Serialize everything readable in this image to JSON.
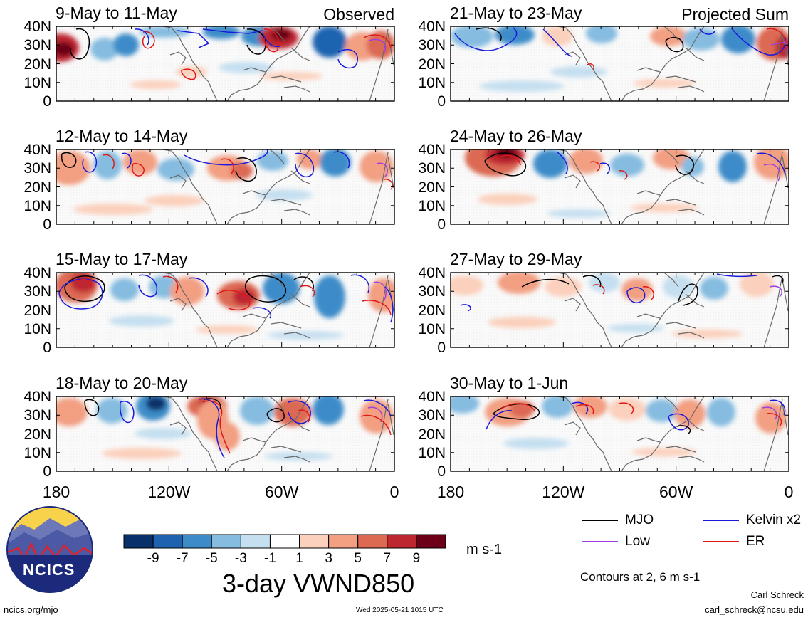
{
  "panels": [
    {
      "title": "9-May to 11-May",
      "tag": "Observed"
    },
    {
      "title": "21-May to 23-May",
      "tag": "Projected Sum"
    },
    {
      "title": "12-May to 14-May",
      "tag": ""
    },
    {
      "title": "24-May to 26-May",
      "tag": ""
    },
    {
      "title": "15-May to 17-May",
      "tag": ""
    },
    {
      "title": "27-May to 29-May",
      "tag": ""
    },
    {
      "title": "18-May to 20-May",
      "tag": ""
    },
    {
      "title": "30-May to 1-Jun",
      "tag": ""
    }
  ],
  "lat_labels": [
    "40N",
    "30N",
    "20N",
    "10N",
    "0"
  ],
  "lon_labels": [
    "180",
    "120W",
    "60W",
    "0"
  ],
  "legend": {
    "items": [
      {
        "label": "MJO",
        "color": "#000000"
      },
      {
        "label": "Kelvin x2",
        "color": "#1a1adb"
      },
      {
        "label": "Low",
        "color": "#a040e0"
      },
      {
        "label": "ER",
        "color": "#e01818"
      }
    ],
    "contours_note": "Contours at 2, 6 m s-1"
  },
  "colorbar": {
    "ticks": [
      "-9",
      "-7",
      "-5",
      "-3",
      "-1",
      "1",
      "3",
      "5",
      "7",
      "9"
    ],
    "colors": [
      "#08306b",
      "#1f63b0",
      "#3d8cc9",
      "#85bce0",
      "#c5dff0",
      "#ffffff",
      "#fbd0bc",
      "#f29f82",
      "#dc6952",
      "#bd2730",
      "#6b0018"
    ],
    "units": "m s-1",
    "title": "3-day VWND850"
  },
  "logo": {
    "text": "NCICS"
  },
  "footer": {
    "url": "ncics.org/mjo",
    "timestamp": "Wed 2025-05-21 1015 UTC",
    "author": "Carl Schreck",
    "email": "carl_schreck@ncsu.edu"
  }
}
